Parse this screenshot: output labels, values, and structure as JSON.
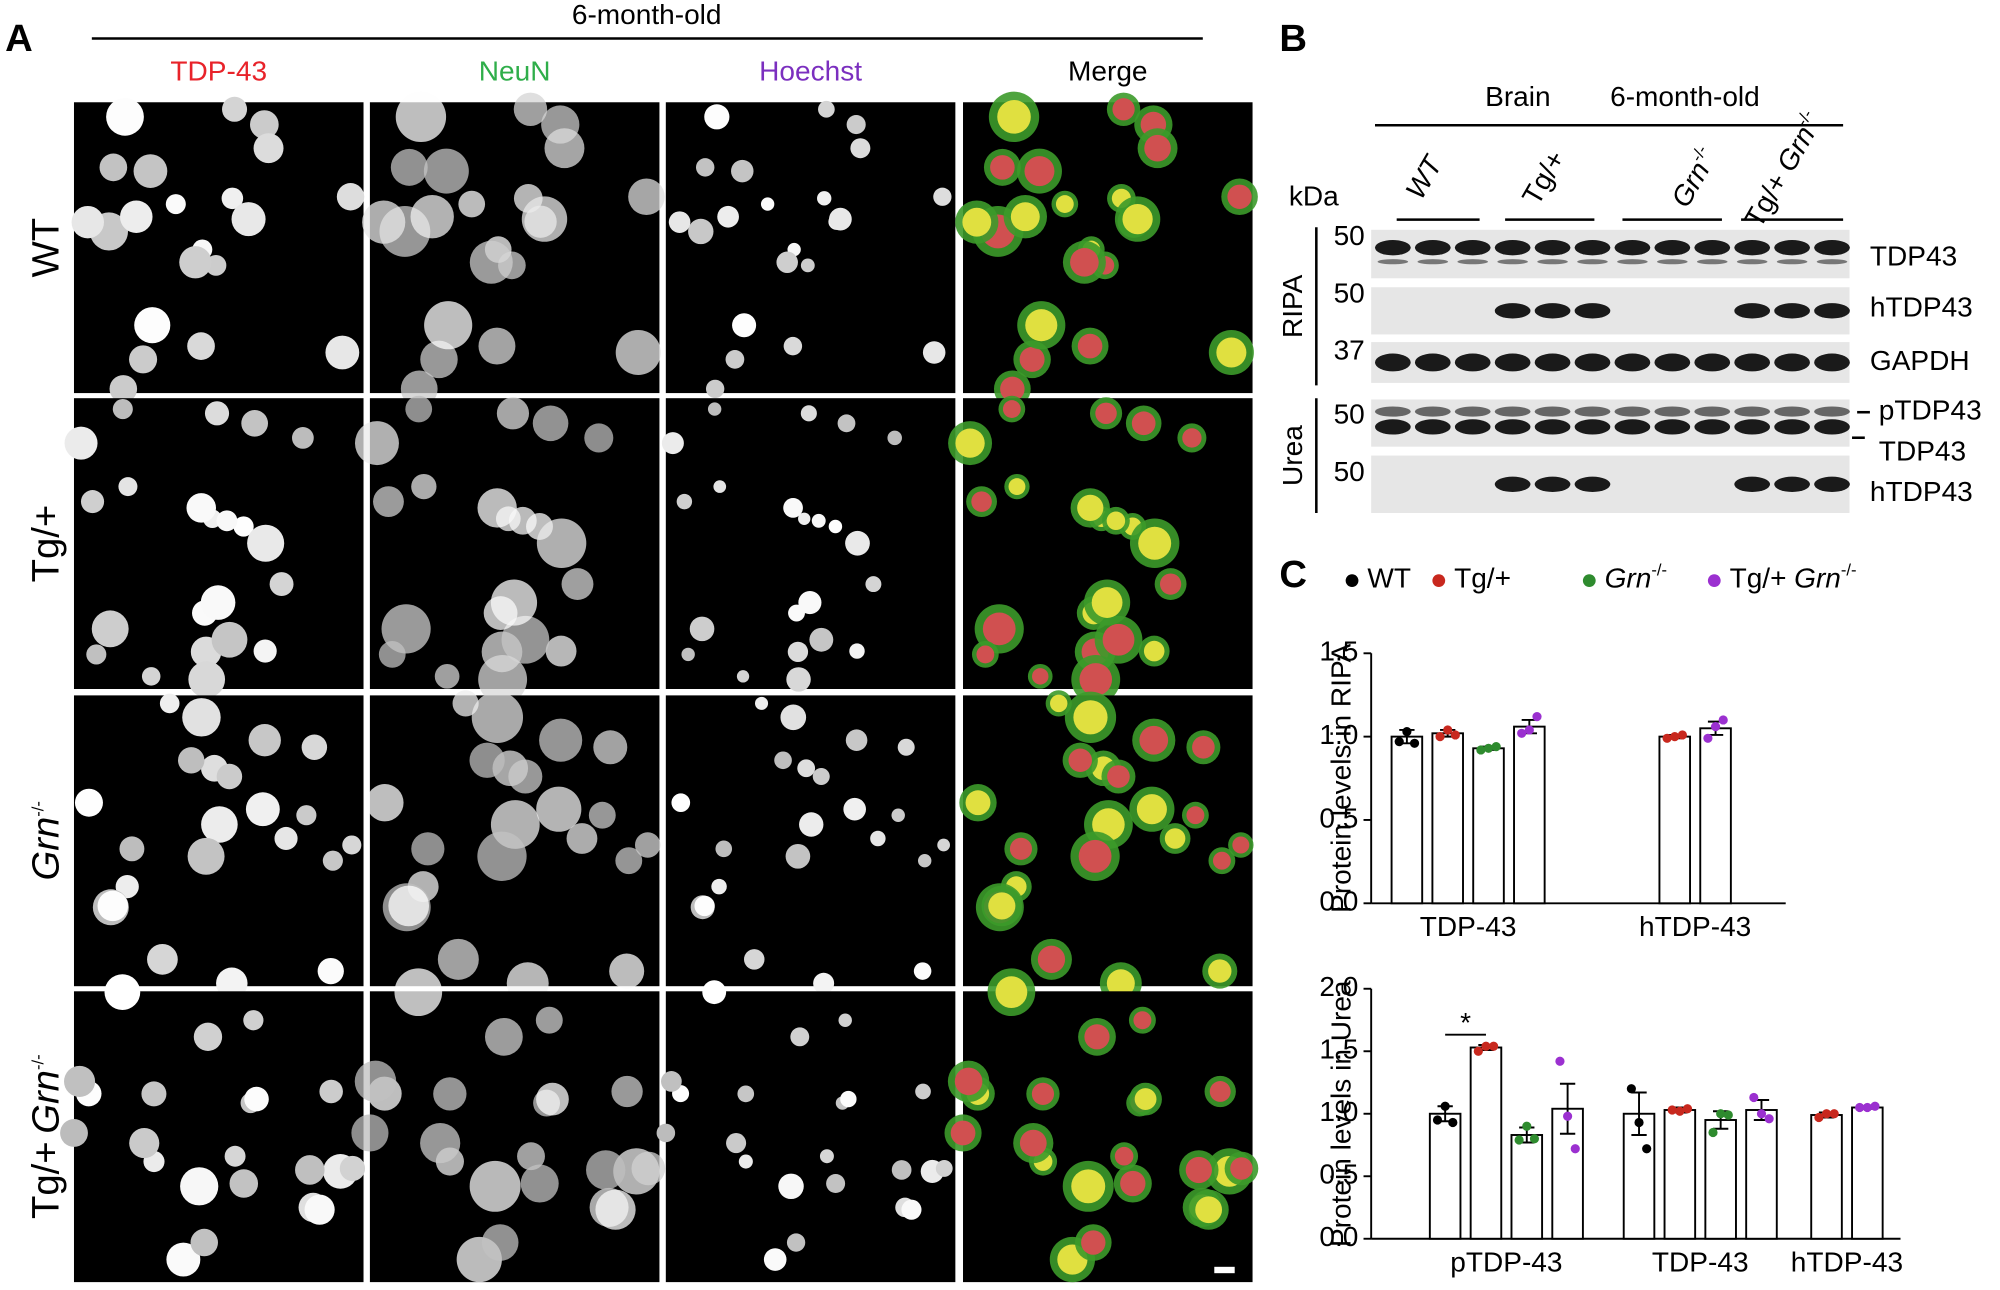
{
  "panel_a": {
    "letter": "A",
    "title": "6-month-old",
    "columns": [
      "TDP-43",
      "NeuN",
      "Hoechst",
      "Merge"
    ],
    "rows": [
      {
        "label": "WT"
      },
      {
        "label": "Tg/+"
      },
      {
        "gene": "Grn",
        "sup": "-/-"
      },
      {
        "label": "Tg/+",
        "gene": "Grn",
        "sup": "-/-"
      }
    ]
  },
  "panel_b": {
    "letter": "B",
    "tissue": "Brain",
    "age": "6-month-old",
    "kda": "kDa",
    "lanes": [
      {
        "label": "WT"
      },
      {
        "label": "Tg/+"
      },
      {
        "gene": "Grn",
        "sup": "-/-"
      },
      {
        "label": "Tg/+",
        "gene": "Grn",
        "sup": "-/-"
      }
    ],
    "fractions": [
      "RIPA",
      "Urea"
    ],
    "markers": [
      "50",
      "50",
      "37",
      "50",
      "50"
    ],
    "bands": [
      "TDP43",
      "hTDP43",
      "GAPDH",
      "pTDP43",
      "TDP43",
      "hTDP43"
    ]
  },
  "panel_c": {
    "letter": "C"
  },
  "chart_data": [
    {
      "type": "bar",
      "y_label": "Protein levels in RIPA",
      "categories": [
        "TDP-43",
        "hTDP-43"
      ],
      "series": [
        {
          "name": "WT",
          "color": "#000000",
          "values": [
            1.0,
            null
          ],
          "errors": [
            0.04,
            null
          ],
          "points": [
            [
              0.97,
              1.03,
              0.96
            ],
            null
          ]
        },
        {
          "name": "Tg/+",
          "color": "#c8281e",
          "values": [
            1.02,
            1.0
          ],
          "errors": [
            0.02,
            0.01
          ],
          "points": [
            [
              1.0,
              1.04,
              1.01
            ],
            [
              0.99,
              1.0,
              1.01
            ]
          ]
        },
        {
          "name": "Grn",
          "name_sup": "-/-",
          "color": "#2e8b2e",
          "values": [
            0.93,
            null
          ],
          "errors": [
            0.01,
            null
          ],
          "points": [
            [
              0.92,
              0.93,
              0.94
            ],
            null
          ]
        },
        {
          "name": "Tg/+",
          "name_gene": "Grn",
          "name_sup": "-/-",
          "color": "#9b30d0",
          "values": [
            1.06,
            1.05
          ],
          "errors": [
            0.04,
            0.04
          ],
          "points": [
            [
              1.02,
              1.04,
              1.12
            ],
            [
              0.99,
              1.06,
              1.1
            ]
          ]
        }
      ],
      "ylim": [
        0,
        1.5
      ],
      "yticks": [
        {
          "value": 0,
          "label": "0.0"
        },
        {
          "value": 0.5,
          "label": "0.5"
        },
        {
          "value": 1,
          "label": "1.0"
        },
        {
          "value": 1.5,
          "label": "1.5"
        }
      ]
    },
    {
      "type": "bar",
      "y_label": "Protein levels in Urea",
      "categories": [
        "pTDP-43",
        "TDP-43",
        "hTDP-43"
      ],
      "annotation": "*",
      "series": [
        {
          "color": "#000000",
          "values": [
            1.0,
            1.0,
            null
          ],
          "errors": [
            0.06,
            0.17,
            null
          ],
          "points": [
            [
              0.95,
              1.06,
              0.93
            ],
            [
              1.2,
              0.93,
              0.72
            ],
            null
          ]
        },
        {
          "color": "#c8281e",
          "values": [
            1.53,
            1.03,
            0.99
          ],
          "errors": [
            0.02,
            0.02,
            0.02
          ],
          "points": [
            [
              1.5,
              1.54,
              1.54
            ],
            [
              1.03,
              1.02,
              1.04
            ],
            [
              0.97,
              1.0,
              1.0
            ]
          ]
        },
        {
          "color": "#2e8b2e",
          "values": [
            0.83,
            0.95,
            null
          ],
          "errors": [
            0.06,
            0.07,
            null
          ],
          "points": [
            [
              0.79,
              0.9,
              0.8
            ],
            [
              0.85,
              1.0,
              0.99
            ]
          ]
        },
        {
          "color": "#9b30d0",
          "values": [
            1.04,
            1.03,
            1.05
          ],
          "errors": [
            0.2,
            0.08,
            0.01
          ],
          "points": [
            [
              1.42,
              0.98,
              0.72
            ],
            [
              1.13,
              1.0,
              0.96
            ],
            [
              1.05,
              1.05,
              1.06
            ]
          ]
        }
      ],
      "ylim": [
        0,
        2
      ],
      "yticks": [
        {
          "value": 0,
          "label": "0.0"
        },
        {
          "value": 0.5,
          "label": "0.5"
        },
        {
          "value": 1,
          "label": "1.0"
        },
        {
          "value": 1.5,
          "label": "1.5"
        },
        {
          "value": 2,
          "label": "2.0"
        }
      ]
    }
  ]
}
